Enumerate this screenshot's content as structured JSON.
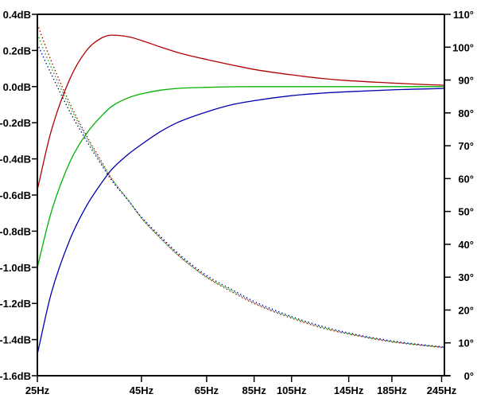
{
  "chart_data": {
    "type": "line",
    "title": "",
    "xlabel": "",
    "ylabel": "",
    "y2label": "",
    "x_scale": "log",
    "xlim": [
      25,
      250
    ],
    "ylim": [
      -1.6,
      0.4
    ],
    "y2lim": [
      0,
      110
    ],
    "grid": false,
    "legend": null,
    "x_ticks": [
      {
        "value": 25,
        "label": "25Hz"
      },
      {
        "value": 45,
        "label": "45Hz"
      },
      {
        "value": 65,
        "label": "65Hz"
      },
      {
        "value": 85,
        "label": "85Hz"
      },
      {
        "value": 105,
        "label": "105Hz"
      },
      {
        "value": 145,
        "label": "145Hz"
      },
      {
        "value": 185,
        "label": "185Hz"
      },
      {
        "value": 245,
        "label": "245Hz"
      }
    ],
    "y_ticks": [
      {
        "value": 0.4,
        "label": "0.4dB"
      },
      {
        "value": 0.2,
        "label": "0.2dB"
      },
      {
        "value": 0.0,
        "label": "0.0dB"
      },
      {
        "value": -0.2,
        "label": "-0.2dB"
      },
      {
        "value": -0.4,
        "label": "-0.4dB"
      },
      {
        "value": -0.6,
        "label": "-0.6dB"
      },
      {
        "value": -0.8,
        "label": "-0.8dB"
      },
      {
        "value": -1.0,
        "label": "-1.0dB"
      },
      {
        "value": -1.2,
        "label": "-1.2dB"
      },
      {
        "value": -1.4,
        "label": "-1.4dB"
      },
      {
        "value": -1.6,
        "label": "-1.6dB"
      }
    ],
    "y2_ticks": [
      {
        "value": 110,
        "label": "110°"
      },
      {
        "value": 100,
        "label": "100°"
      },
      {
        "value": 90,
        "label": "90°"
      },
      {
        "value": 80,
        "label": "80°"
      },
      {
        "value": 70,
        "label": "70°"
      },
      {
        "value": 60,
        "label": "60°"
      },
      {
        "value": 50,
        "label": "50°"
      },
      {
        "value": 40,
        "label": "40°"
      },
      {
        "value": 30,
        "label": "30°"
      },
      {
        "value": 20,
        "label": "20°"
      },
      {
        "value": 10,
        "label": "10°"
      },
      {
        "value": 0,
        "label": "0°"
      }
    ],
    "x": [
      25,
      27,
      30,
      33,
      36,
      38,
      42,
      45,
      50,
      55,
      65,
      75,
      85,
      105,
      125,
      145,
      185,
      220,
      250
    ],
    "series": [
      {
        "name": "magnitude-red",
        "axis": "left",
        "style": "solid",
        "color": "#b00000",
        "values": [
          -0.57,
          -0.25,
          0.04,
          0.2,
          0.27,
          0.285,
          0.275,
          0.255,
          0.22,
          0.19,
          0.15,
          0.12,
          0.095,
          0.065,
          0.045,
          0.033,
          0.02,
          0.012,
          0.008
        ]
      },
      {
        "name": "magnitude-green",
        "axis": "left",
        "style": "solid",
        "color": "#00b000",
        "values": [
          -1.0,
          -0.7,
          -0.42,
          -0.26,
          -0.16,
          -0.11,
          -0.06,
          -0.04,
          -0.02,
          -0.01,
          -0.004,
          -0.001,
          0.0,
          0.0,
          0.0,
          0.0,
          0.0,
          0.0,
          0.0
        ]
      },
      {
        "name": "magnitude-blue",
        "axis": "left",
        "style": "solid",
        "color": "#0000b0",
        "values": [
          -1.48,
          -1.15,
          -0.85,
          -0.66,
          -0.53,
          -0.46,
          -0.37,
          -0.32,
          -0.25,
          -0.2,
          -0.14,
          -0.1,
          -0.078,
          -0.05,
          -0.036,
          -0.028,
          -0.018,
          -0.013,
          -0.01
        ]
      },
      {
        "name": "phase-red",
        "axis": "right",
        "style": "dotted",
        "color": "#b00000",
        "values": [
          107,
          96,
          83,
          73,
          65,
          60,
          53,
          48,
          42,
          37,
          30,
          25.5,
          22,
          17.5,
          14.5,
          12.7,
          10.3,
          9.2,
          8.5
        ]
      },
      {
        "name": "phase-green",
        "axis": "right",
        "style": "dotted",
        "color": "#00b000",
        "values": [
          104,
          94,
          82,
          72.5,
          64.5,
          60,
          53,
          48,
          42,
          37,
          30,
          25.8,
          22.2,
          17.7,
          14.7,
          12.8,
          10.4,
          9.3,
          8.6
        ]
      },
      {
        "name": "phase-blue",
        "axis": "right",
        "style": "dotted",
        "color": "#0000b0",
        "values": [
          101,
          92,
          80.5,
          71.5,
          64,
          59.5,
          53,
          48.3,
          42.5,
          37.5,
          30.5,
          26.2,
          22.6,
          18,
          15,
          13,
          10.6,
          9.4,
          8.7
        ]
      }
    ]
  }
}
